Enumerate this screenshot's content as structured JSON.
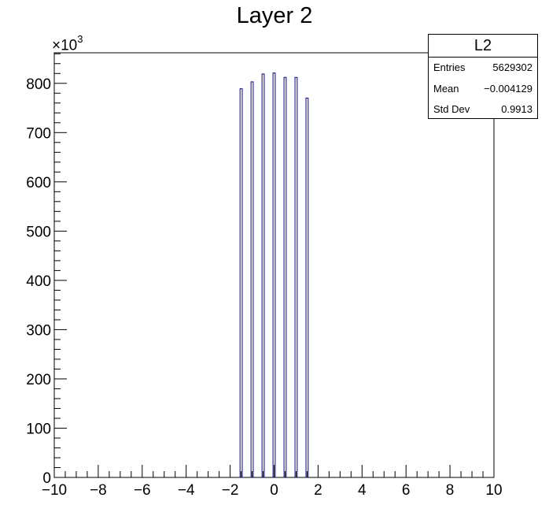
{
  "chart_data": {
    "type": "bar",
    "title": "Layer 2",
    "y_multiplier_label": "×10",
    "y_multiplier_exponent": "3",
    "xlim": [
      -10,
      10
    ],
    "ylim": [
      0,
      862
    ],
    "x_ticks": [
      -10,
      -8,
      -6,
      -4,
      -2,
      0,
      2,
      4,
      6,
      8,
      10
    ],
    "x_tick_labels": [
      "−10",
      "−8",
      "−6",
      "−4",
      "−2",
      "0",
      "2",
      "4",
      "6",
      "8",
      "10"
    ],
    "y_ticks": [
      0,
      100,
      200,
      300,
      400,
      500,
      600,
      700,
      800
    ],
    "y_tick_labels": [
      "0",
      "100",
      "200",
      "300",
      "400",
      "500",
      "600",
      "700",
      "800"
    ],
    "bin_width": 0.1,
    "bars": [
      {
        "x": -1.5,
        "value": 789
      },
      {
        "x": -1.0,
        "value": 803
      },
      {
        "x": -0.5,
        "value": 819
      },
      {
        "x": 0.0,
        "value": 821
      },
      {
        "x": 0.5,
        "value": 812
      },
      {
        "x": 1.0,
        "value": 812
      },
      {
        "x": 1.5,
        "value": 770
      }
    ],
    "grid": false,
    "legend": "none"
  },
  "stats_box": {
    "name": "L2",
    "entries_label": "Entries",
    "entries_value": "5629302",
    "mean_label": "Mean",
    "mean_value": "−0.004129",
    "std_label": "Std Dev",
    "std_value": "0.9913"
  },
  "colors": {
    "bar_fill": "#ffffff",
    "bar_stroke": "#000099",
    "axis": "#000000"
  }
}
